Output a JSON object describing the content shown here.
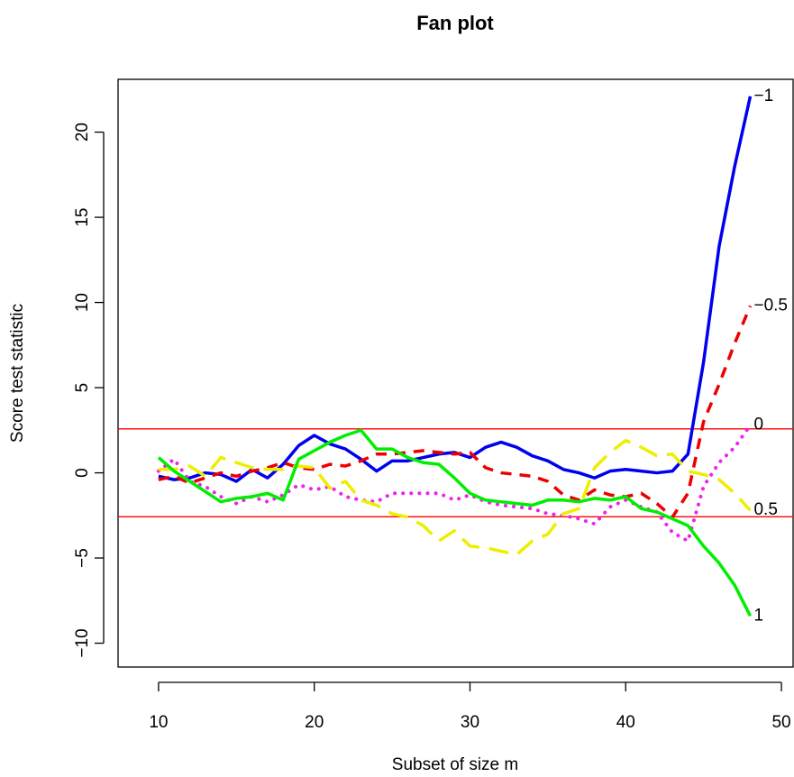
{
  "chart_data": {
    "type": "line",
    "title": "Fan plot",
    "xlabel": "Subset of size m",
    "ylabel": "Score test statistic",
    "x": [
      10,
      11,
      12,
      13,
      14,
      15,
      16,
      17,
      18,
      19,
      20,
      21,
      22,
      23,
      24,
      25,
      26,
      27,
      28,
      29,
      30,
      31,
      32,
      33,
      34,
      35,
      36,
      37,
      38,
      39,
      40,
      41,
      42,
      43,
      44,
      45,
      46,
      47,
      48
    ],
    "series": [
      {
        "name": "−1",
        "color": "#0000ee",
        "linestyle": "solid",
        "values": [
          -0.2,
          -0.4,
          -0.3,
          0,
          -0.1,
          -0.5,
          0.2,
          -0.3,
          0.5,
          1.6,
          2.2,
          1.7,
          1.4,
          0.8,
          0.1,
          0.7,
          0.7,
          0.9,
          1.1,
          1.2,
          0.9,
          1.5,
          1.8,
          1.5,
          1.0,
          0.7,
          0.2,
          0.0,
          -0.3,
          0.1,
          0.2,
          0.1,
          0.0,
          0.1,
          1.1,
          6.5,
          13.3,
          18.0,
          22.1
        ]
      },
      {
        "name": "−0.5",
        "color": "#ee0000",
        "linestyle": "dashed",
        "values": [
          -0.4,
          -0.2,
          -0.6,
          -0.3,
          0,
          -0.2,
          0.1,
          0.3,
          0.6,
          0.3,
          0.2,
          0.5,
          0.4,
          0.7,
          1.1,
          1.1,
          1.2,
          1.3,
          1.2,
          1.1,
          1.2,
          0.3,
          0.0,
          -0.1,
          -0.2,
          -0.5,
          -1.3,
          -1.6,
          -1.0,
          -1.3,
          -1.4,
          -1.2,
          -1.8,
          -2.6,
          -1.2,
          3.0,
          5.2,
          7.6,
          9.8
        ]
      },
      {
        "name": "0",
        "color": "#ee22ee",
        "linestyle": "dotted",
        "values": [
          0.1,
          0.8,
          -0.5,
          -0.8,
          -1.4,
          -1.8,
          -1.4,
          -1.7,
          -1.3,
          -0.7,
          -1.0,
          -0.8,
          -1.4,
          -1.6,
          -1.7,
          -1.2,
          -1.2,
          -1.2,
          -1.2,
          -1.6,
          -1.3,
          -1.7,
          -1.9,
          -2.0,
          -2.1,
          -2.4,
          -2.5,
          -2.7,
          -3.0,
          -2.0,
          -1.6,
          -2.0,
          -2.3,
          -3.5,
          -4.0,
          -0.8,
          0.6,
          1.5,
          2.8
        ]
      },
      {
        "name": "0.5",
        "color": "#eeee00",
        "linestyle": "longdash",
        "values": [
          0.2,
          0.2,
          0.4,
          -0.2,
          0.9,
          0.6,
          0.3,
          0.2,
          0.2,
          0.4,
          0.3,
          -0.9,
          -0.5,
          -1.6,
          -1.9,
          -2.4,
          -2.6,
          -3.1,
          -4.0,
          -3.4,
          -4.3,
          -4.4,
          -4.6,
          -4.8,
          -4.0,
          -3.6,
          -2.4,
          -2.1,
          0.3,
          1.2,
          1.9,
          1.5,
          1.0,
          1.1,
          0.1,
          -0.1,
          -0.4,
          -1.2,
          -2.2
        ]
      },
      {
        "name": "1",
        "color": "#00ee00",
        "linestyle": "solid",
        "values": [
          0.9,
          0.1,
          -0.5,
          -1.1,
          -1.7,
          -1.5,
          -1.4,
          -1.2,
          -1.6,
          0.8,
          1.3,
          1.8,
          2.2,
          2.5,
          1.4,
          1.4,
          0.9,
          0.6,
          0.5,
          -0.3,
          -1.2,
          -1.6,
          -1.7,
          -1.8,
          -1.9,
          -1.6,
          -1.6,
          -1.7,
          -1.5,
          -1.6,
          -1.4,
          -2.1,
          -2.3,
          -2.7,
          -3.1,
          -4.3,
          -5.3,
          -6.6,
          -8.4
        ]
      }
    ],
    "hlines": [
      2.58,
      -2.58
    ],
    "hline_color": "#ff0000",
    "xlim": [
      7.4,
      50.75
    ],
    "ylim": [
      -11.4,
      23.1
    ],
    "xticks": [
      10,
      20,
      30,
      40,
      50
    ],
    "yticks": [
      {
        "value": -10,
        "label": "−10"
      },
      {
        "value": -5,
        "label": "−5"
      },
      0,
      5,
      10,
      15,
      20
    ]
  }
}
